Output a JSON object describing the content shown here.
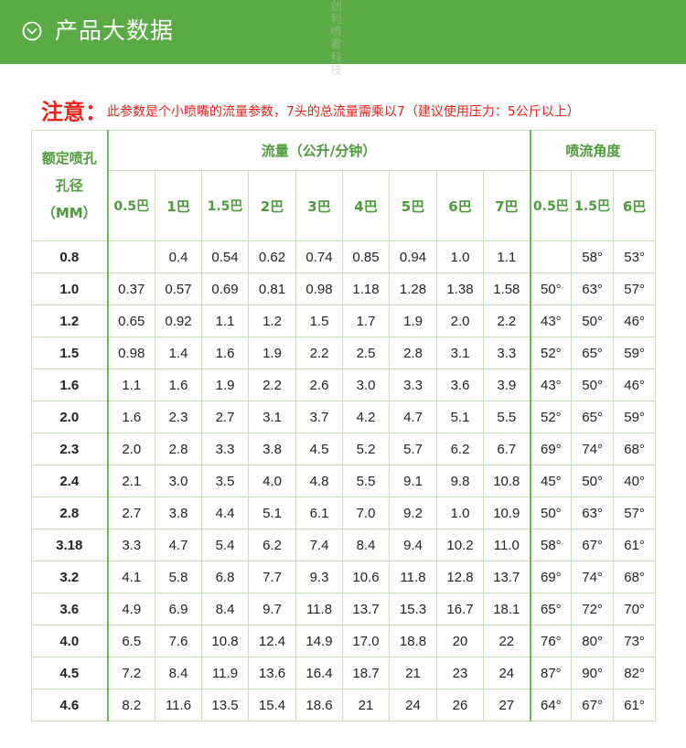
{
  "header": {
    "title": "产品大数据",
    "icon": "chevron-down-circle-icon",
    "bg_color": "#5aab45"
  },
  "note": {
    "label": "注意：",
    "text": "此参数是个小喷嘴的流量参数，7头的总流量需乘以7（建议使用压力：5公斤以上）",
    "color": "#e8231a"
  },
  "table": {
    "size_header": "额定喷孔孔径（MM）",
    "flow_header": "流量（公升/分钟）",
    "angle_header": "喷流角度",
    "flow_pressures": [
      "0.5巴",
      "1巴",
      "1.5巴",
      "2巴",
      "3巴",
      "4巴",
      "5巴",
      "6巴",
      "7巴"
    ],
    "angle_pressures": [
      "0.5巴",
      "1.5巴",
      "6巴"
    ],
    "rows": [
      {
        "size": "0.8",
        "flow": [
          "",
          "0.4",
          "0.54",
          "0.62",
          "0.74",
          "0.85",
          "0.94",
          "1.0",
          "1.1"
        ],
        "angle": [
          "",
          "58°",
          "53°"
        ]
      },
      {
        "size": "1.0",
        "flow": [
          "0.37",
          "0.57",
          "0.69",
          "0.81",
          "0.98",
          "1.18",
          "1.28",
          "1.38",
          "1.58"
        ],
        "angle": [
          "50°",
          "63°",
          "57°"
        ]
      },
      {
        "size": "1.2",
        "flow": [
          "0.65",
          "0.92",
          "1.1",
          "1.2",
          "1.5",
          "1.7",
          "1.9",
          "2.0",
          "2.2"
        ],
        "angle": [
          "43°",
          "50°",
          "46°"
        ]
      },
      {
        "size": "1.5",
        "flow": [
          "0.98",
          "1.4",
          "1.6",
          "1.9",
          "2.2",
          "2.5",
          "2.8",
          "3.1",
          "3.3"
        ],
        "angle": [
          "52°",
          "65°",
          "59°"
        ]
      },
      {
        "size": "1.6",
        "flow": [
          "1.1",
          "1.6",
          "1.9",
          "2.2",
          "2.6",
          "3.0",
          "3.3",
          "3.6",
          "3.9"
        ],
        "angle": [
          "43°",
          "50°",
          "46°"
        ]
      },
      {
        "size": "2.0",
        "flow": [
          "1.6",
          "2.3",
          "2.7",
          "3.1",
          "3.7",
          "4.2",
          "4.7",
          "5.1",
          "5.5"
        ],
        "angle": [
          "52°",
          "65°",
          "59°"
        ]
      },
      {
        "size": "2.3",
        "flow": [
          "2.0",
          "2.8",
          "3.3",
          "3.8",
          "4.5",
          "5.2",
          "5.7",
          "6.2",
          "6.7"
        ],
        "angle": [
          "69°",
          "74°",
          "68°"
        ]
      },
      {
        "size": "2.4",
        "flow": [
          "2.1",
          "3.0",
          "3.5",
          "4.0",
          "4.8",
          "5.5",
          "9.1",
          "9.8",
          "10.8"
        ],
        "angle": [
          "45°",
          "50°",
          "40°"
        ]
      },
      {
        "size": "2.8",
        "flow": [
          "2.7",
          "3.8",
          "4.4",
          "5.1",
          "6.1",
          "7.0",
          "9.2",
          "1.0",
          "10.9"
        ],
        "angle": [
          "50°",
          "63°",
          "57°"
        ]
      },
      {
        "size": "3.18",
        "flow": [
          "3.3",
          "4.7",
          "5.4",
          "6.2",
          "7.4",
          "8.4",
          "9.4",
          "10.2",
          "11.0"
        ],
        "angle": [
          "58°",
          "67°",
          "61°"
        ]
      },
      {
        "size": "3.2",
        "flow": [
          "4.1",
          "5.8",
          "6.8",
          "7.7",
          "9.3",
          "10.6",
          "11.8",
          "12.8",
          "13.7"
        ],
        "angle": [
          "69°",
          "74°",
          "68°"
        ]
      },
      {
        "size": "3.6",
        "flow": [
          "4.9",
          "6.9",
          "8.4",
          "9.7",
          "11.8",
          "13.7",
          "15.3",
          "16.7",
          "18.1"
        ],
        "angle": [
          "65°",
          "72°",
          "70°"
        ]
      },
      {
        "size": "4.0",
        "flow": [
          "6.5",
          "7.6",
          "10.8",
          "12.4",
          "14.9",
          "17.0",
          "18.8",
          "20",
          "22"
        ],
        "angle": [
          "76°",
          "80°",
          "73°"
        ]
      },
      {
        "size": "4.5",
        "flow": [
          "7.2",
          "8.4",
          "11.9",
          "13.6",
          "16.4",
          "18.7",
          "21",
          "23",
          "24"
        ],
        "angle": [
          "87°",
          "90°",
          "82°"
        ]
      },
      {
        "size": "4.6",
        "flow": [
          "8.2",
          "11.6",
          "13.5",
          "15.4",
          "18.6",
          "21",
          "24",
          "26",
          "27"
        ],
        "angle": [
          "64°",
          "67°",
          "61°"
        ]
      }
    ]
  },
  "watermark": {
    "text": "创利喷雾科技"
  },
  "colors": {
    "accent_green": "#5aab45",
    "header_text_green": "#4d9a3a",
    "grid_line": "#c7dfbd",
    "warning_red": "#e8231a"
  }
}
